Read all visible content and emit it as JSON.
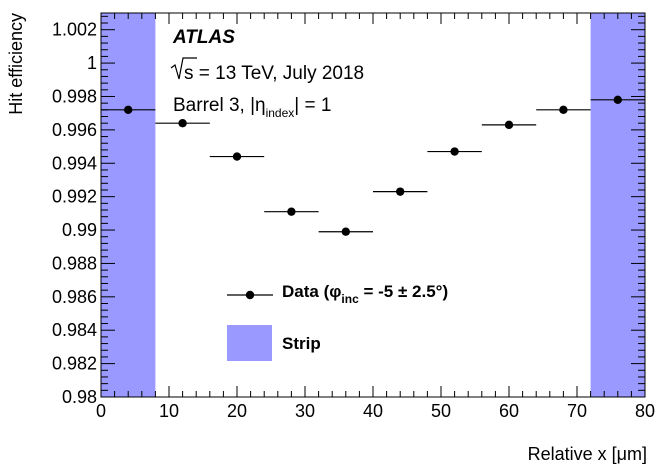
{
  "chart_data": {
    "type": "scatter",
    "xlabel": "Relative x [μm]",
    "ylabel": "Hit efficiency",
    "xlim": [
      0,
      80
    ],
    "ylim": [
      0.98,
      1.003
    ],
    "x_ticks": [
      "0",
      "10",
      "20",
      "30",
      "40",
      "50",
      "60",
      "70",
      "80"
    ],
    "y_ticks": [
      "0.98",
      "0.982",
      "0.984",
      "0.986",
      "0.988",
      "0.99",
      "0.992",
      "0.994",
      "0.996",
      "0.998",
      "1",
      "1.002"
    ],
    "grid": false,
    "series": [
      {
        "name": "Data (φinc = -5 ± 2.5°)",
        "color": "#000000",
        "x": [
          4,
          12,
          20,
          28,
          36,
          44,
          52,
          60,
          68,
          76
        ],
        "y": [
          0.9972,
          0.9964,
          0.9944,
          0.9911,
          0.9899,
          0.9923,
          0.9947,
          0.9963,
          0.9972,
          0.9978
        ],
        "x_err": [
          4,
          4,
          4,
          4,
          4,
          4,
          4,
          4,
          4,
          4
        ]
      }
    ],
    "bands": [
      {
        "name": "Strip",
        "color": "#9999ff",
        "x_ranges": [
          [
            0,
            8
          ],
          [
            72,
            80
          ]
        ]
      }
    ],
    "annotations": {
      "experiment": "ATLAS",
      "energy_prefix": "s",
      "energy_rest": " = 13 TeV, July 2018",
      "region_prefix": "Barrel 3, |η",
      "region_sub": "index",
      "region_suffix": "| = 1"
    },
    "legend": {
      "position": "lower-center",
      "data_prefix": "Data (φ",
      "data_sub": "inc",
      "data_suffix": " = -5 ± 2.5°)",
      "band_label": "Strip"
    }
  }
}
